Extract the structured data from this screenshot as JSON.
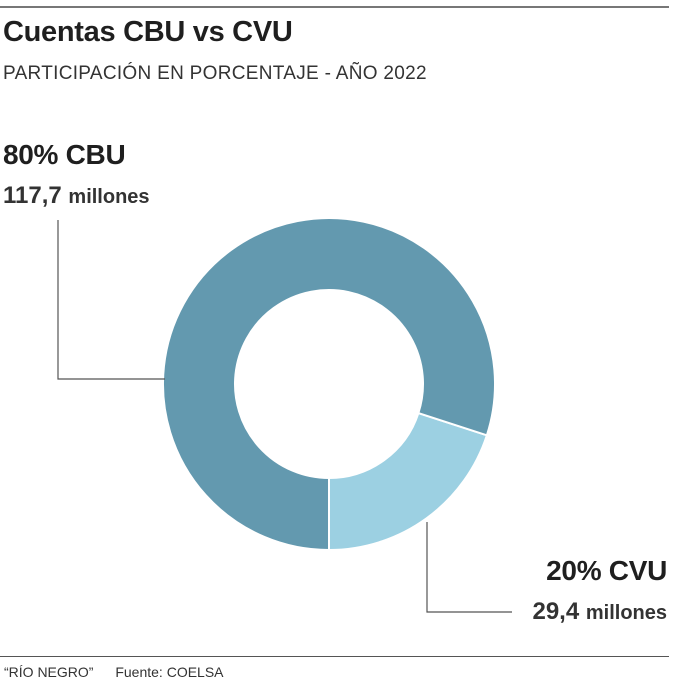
{
  "header": {
    "title": "Cuentas CBU vs CVU",
    "subtitle": "PARTICIPACIÓN EN PORCENTAJE - AÑO 2022"
  },
  "labels": {
    "cbu": {
      "percent_label": "80% CBU",
      "amount_value": "117,7",
      "amount_unit": "millones"
    },
    "cvu": {
      "percent_label": "20% CVU",
      "amount_value": "29,4",
      "amount_unit": "millones"
    }
  },
  "footer": {
    "publisher": "“RÍO NEGRO”",
    "source": "Fuente: COELSA"
  },
  "chart_data": {
    "type": "pie",
    "donut": true,
    "title": "Cuentas CBU vs CVU",
    "subtitle": "PARTICIPACIÓN EN PORCENTAJE - AÑO 2022",
    "categories": [
      "CBU",
      "CVU"
    ],
    "values": [
      80,
      20
    ],
    "amounts_millones": [
      117.7,
      29.4
    ],
    "colors": [
      "#6399af",
      "#9cd0e2"
    ],
    "legend": "none"
  }
}
